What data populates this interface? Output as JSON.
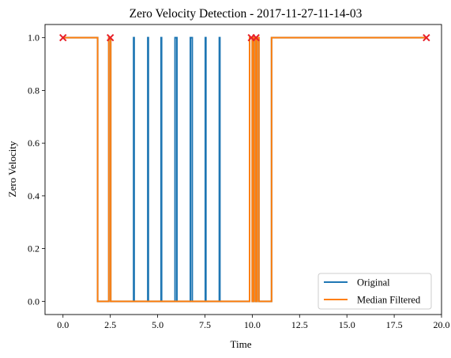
{
  "chart_data": {
    "type": "line",
    "title": "Zero Velocity Detection - 2017-11-27-11-14-03",
    "xlabel": "Time",
    "ylabel": "Zero Velocity",
    "xlim": [
      -0.95,
      20.0
    ],
    "ylim": [
      -0.05,
      1.05
    ],
    "xticks": [
      0.0,
      2.5,
      5.0,
      7.5,
      10.0,
      12.5,
      15.0,
      17.5,
      20.0
    ],
    "xtick_labels": [
      "0.0",
      "2.5",
      "5.0",
      "7.5",
      "10.0",
      "12.5",
      "15.0",
      "17.5",
      "20.0"
    ],
    "yticks": [
      0.0,
      0.2,
      0.4,
      0.6,
      0.8,
      1.0
    ],
    "ytick_labels": [
      "0.0",
      "0.2",
      "0.4",
      "0.6",
      "0.8",
      "1.0"
    ],
    "legend_position": "lower-right",
    "series": [
      {
        "name": "Original",
        "color": "#1f77b4",
        "points": [
          [
            0.0,
            1
          ],
          [
            1.83,
            1
          ],
          [
            1.83,
            0
          ],
          [
            2.42,
            0
          ],
          [
            2.42,
            1
          ],
          [
            2.52,
            1
          ],
          [
            2.52,
            0
          ],
          [
            3.73,
            0
          ],
          [
            3.73,
            1
          ],
          [
            3.76,
            1
          ],
          [
            3.76,
            0
          ],
          [
            4.48,
            0
          ],
          [
            4.48,
            1
          ],
          [
            4.51,
            1
          ],
          [
            4.51,
            0
          ],
          [
            5.18,
            0
          ],
          [
            5.18,
            1
          ],
          [
            5.21,
            1
          ],
          [
            5.21,
            0
          ],
          [
            5.92,
            0
          ],
          [
            5.92,
            1
          ],
          [
            6.02,
            1
          ],
          [
            6.02,
            0
          ],
          [
            6.73,
            0
          ],
          [
            6.73,
            1
          ],
          [
            6.83,
            1
          ],
          [
            6.83,
            0
          ],
          [
            7.52,
            0
          ],
          [
            7.52,
            1
          ],
          [
            7.55,
            1
          ],
          [
            7.55,
            0
          ],
          [
            8.26,
            0
          ],
          [
            8.26,
            1
          ],
          [
            8.29,
            1
          ],
          [
            8.29,
            0
          ],
          [
            9.86,
            0
          ],
          [
            9.86,
            1
          ],
          [
            10.0,
            1
          ],
          [
            10.0,
            0
          ],
          [
            10.08,
            0
          ],
          [
            10.08,
            1
          ],
          [
            10.18,
            1
          ],
          [
            10.18,
            0
          ],
          [
            10.25,
            0
          ],
          [
            10.25,
            1
          ],
          [
            10.35,
            1
          ],
          [
            10.35,
            0
          ],
          [
            11.02,
            0
          ],
          [
            11.02,
            1
          ],
          [
            19.2,
            1
          ]
        ]
      },
      {
        "name": "Median Filtered",
        "color": "#ff7f0e",
        "points": [
          [
            0.0,
            1
          ],
          [
            1.83,
            1
          ],
          [
            1.83,
            0
          ],
          [
            2.42,
            0
          ],
          [
            2.42,
            1
          ],
          [
            2.52,
            1
          ],
          [
            2.52,
            0
          ],
          [
            9.86,
            0
          ],
          [
            9.86,
            1
          ],
          [
            10.0,
            1
          ],
          [
            10.0,
            0
          ],
          [
            10.08,
            0
          ],
          [
            10.08,
            1
          ],
          [
            10.18,
            1
          ],
          [
            10.18,
            0
          ],
          [
            10.25,
            0
          ],
          [
            10.25,
            1
          ],
          [
            10.35,
            1
          ],
          [
            10.35,
            0
          ],
          [
            11.02,
            0
          ],
          [
            11.02,
            1
          ],
          [
            19.2,
            1
          ]
        ]
      }
    ],
    "markers": {
      "symbol": "x",
      "color": "#e8202a",
      "points": [
        [
          0.0,
          1
        ],
        [
          2.5,
          1
        ],
        [
          9.95,
          1
        ],
        [
          10.2,
          1
        ],
        [
          19.2,
          1
        ]
      ]
    }
  }
}
